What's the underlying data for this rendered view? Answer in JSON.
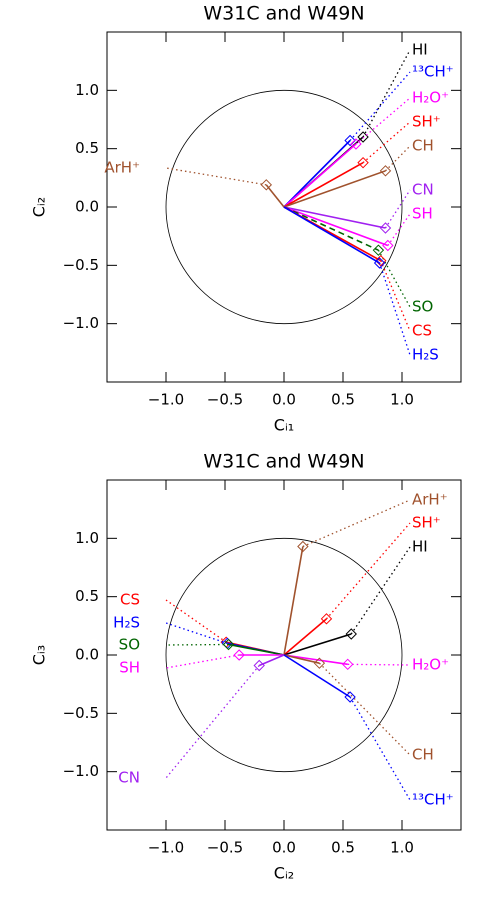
{
  "chart_data": [
    {
      "type": "biplot",
      "title": "W31C and W49N",
      "xlabel": "Cᵢ₁",
      "ylabel": "Cᵢ₂",
      "xlim": [
        -1.5,
        1.5
      ],
      "ylim": [
        -1.5,
        1.5
      ],
      "xticks": [
        {
          "value": -1.0,
          "label": "−1.0"
        },
        {
          "value": -0.5,
          "label": "−0.5"
        },
        {
          "value": 0,
          "label": "0.0"
        },
        {
          "value": 0.5,
          "label": "0.5"
        },
        {
          "value": 1.0,
          "label": "1.0"
        }
      ],
      "yticks": [
        {
          "value": -1.0,
          "label": "−1.0"
        },
        {
          "value": -0.5,
          "label": "−0.5"
        },
        {
          "value": 0,
          "label": "0.0"
        },
        {
          "value": 0.5,
          "label": "0.5"
        },
        {
          "value": 1.0,
          "label": "1.0"
        }
      ],
      "series": [
        {
          "name": "HI",
          "color": "#000000",
          "x": 0.67,
          "y": 0.6
        },
        {
          "name": "¹³CH⁺",
          "color": "#0000ff",
          "x": 0.56,
          "y": 0.57
        },
        {
          "name": "H₂O⁺",
          "color": "#ff00ff",
          "x": 0.61,
          "y": 0.54
        },
        {
          "name": "SH⁺",
          "color": "#ff0000",
          "x": 0.67,
          "y": 0.38
        },
        {
          "name": "CH",
          "color": "#a0522d",
          "x": 0.86,
          "y": 0.31
        },
        {
          "name": "ArH⁺",
          "color": "#a0522d",
          "x": -0.15,
          "y": 0.19
        },
        {
          "name": "CN",
          "color": "#a020f0",
          "x": 0.86,
          "y": -0.18
        },
        {
          "name": "SH",
          "color": "#ff00ff",
          "x": 0.88,
          "y": -0.33
        },
        {
          "name": "SO",
          "color": "#006400",
          "x": 0.8,
          "y": -0.37,
          "dashed": true
        },
        {
          "name": "CS",
          "color": "#ff0000",
          "x": 0.82,
          "y": -0.46
        },
        {
          "name": "H₂S",
          "color": "#0000ff",
          "x": 0.81,
          "y": -0.48
        }
      ]
    },
    {
      "type": "biplot",
      "title": "W31C and W49N",
      "xlabel": "Cᵢ₂",
      "ylabel": "Cᵢ₃",
      "xlim": [
        -1.5,
        1.5
      ],
      "ylim": [
        -1.5,
        1.5
      ],
      "xticks": [
        {
          "value": -1.0,
          "label": "−1.0"
        },
        {
          "value": -0.5,
          "label": "−0.5"
        },
        {
          "value": 0,
          "label": "0.0"
        },
        {
          "value": 0.5,
          "label": "0.5"
        },
        {
          "value": 1.0,
          "label": "1.0"
        }
      ],
      "yticks": [
        {
          "value": -1.0,
          "label": "−1.0"
        },
        {
          "value": -0.5,
          "label": "−0.5"
        },
        {
          "value": 0,
          "label": "0.0"
        },
        {
          "value": 0.5,
          "label": "0.5"
        },
        {
          "value": 1.0,
          "label": "1.0"
        }
      ],
      "series": [
        {
          "name": "ArH⁺",
          "color": "#a0522d",
          "x": 0.16,
          "y": 0.93
        },
        {
          "name": "SH⁺",
          "color": "#ff0000",
          "x": 0.36,
          "y": 0.31
        },
        {
          "name": "HI",
          "color": "#000000",
          "x": 0.57,
          "y": 0.18
        },
        {
          "name": "H₂O⁺",
          "color": "#ff00ff",
          "x": 0.54,
          "y": -0.08
        },
        {
          "name": "CH",
          "color": "#a0522d",
          "x": 0.3,
          "y": -0.07
        },
        {
          "name": "¹³CH⁺",
          "color": "#0000ff",
          "x": 0.56,
          "y": -0.36
        },
        {
          "name": "CS",
          "color": "#ff0000",
          "x": -0.49,
          "y": 0.11
        },
        {
          "name": "H₂S",
          "color": "#0000ff",
          "x": -0.48,
          "y": 0.1
        },
        {
          "name": "SO",
          "color": "#006400",
          "x": -0.47,
          "y": 0.09
        },
        {
          "name": "SH",
          "color": "#ff00ff",
          "x": -0.38,
          "y": 0.0
        },
        {
          "name": "CN",
          "color": "#a020f0",
          "x": -0.21,
          "y": -0.09
        }
      ]
    }
  ]
}
